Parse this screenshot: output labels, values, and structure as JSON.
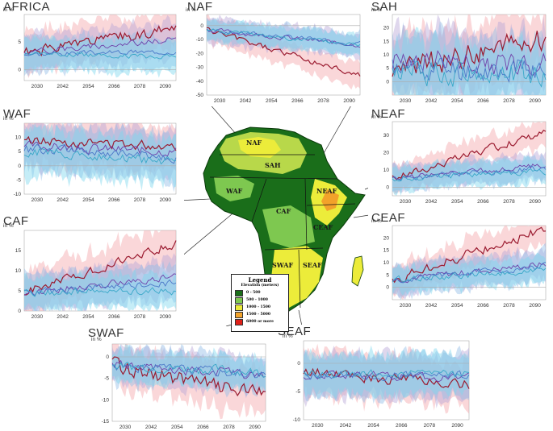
{
  "colors": {
    "red": "#9b1b30",
    "red_band": "#f4a6ab",
    "blue": "#4a78c8",
    "blue_band": "#93bde6",
    "cyan": "#3aa8c8",
    "cyan_band": "#7fd7ee",
    "purple": "#6f3fa8",
    "purple_band": "#b7a6d8",
    "zero": "#aaaaaa"
  },
  "map": {
    "region_labels": [
      "NAF",
      "SAH",
      "WAF",
      "CAF",
      "NEAF",
      "CEAF",
      "SWAF",
      "SEAF"
    ],
    "legend": {
      "title": "Legend",
      "subtitle": "Elevation (meters)",
      "entries": [
        {
          "label": "0 - 500",
          "color": "#1a6e1a"
        },
        {
          "label": "500 - 1000",
          "color": "#7ec850"
        },
        {
          "label": "1000 - 1500",
          "color": "#ecec3a"
        },
        {
          "label": "1500 - 5000",
          "color": "#f2a22a"
        },
        {
          "label": "6000 or more",
          "color": "#e02018"
        }
      ]
    }
  },
  "chart_data": [
    {
      "id": "africa",
      "type": "line",
      "title": "AFRICA",
      "ylabel": "in %",
      "ylim": [
        -2,
        10
      ],
      "yticks": [
        0,
        5
      ],
      "x": [
        2024,
        2095
      ],
      "xticks": [
        2030,
        2042,
        2054,
        2066,
        2078,
        2090
      ],
      "series": [
        {
          "name": "red",
          "start": 3,
          "end": 7.5,
          "noise": 0.9,
          "band": 3.5,
          "seed": 1
        },
        {
          "name": "purple",
          "start": 3.2,
          "end": 5.5,
          "noise": 0.5,
          "band": 3.2,
          "seed": 2
        },
        {
          "name": "blue",
          "start": 2.8,
          "end": 3.3,
          "noise": 0.4,
          "band": 3.0,
          "seed": 3
        },
        {
          "name": "cyan",
          "start": 3,
          "end": 2.3,
          "noise": 0.4,
          "band": 2.8,
          "seed": 4
        }
      ]
    },
    {
      "id": "naf",
      "type": "line",
      "title": "NAF",
      "ylabel": "in %",
      "ylim": [
        -50,
        8
      ],
      "yticks": [
        -50,
        -40,
        -30,
        -20,
        -10,
        0
      ],
      "x": [
        2024,
        2095
      ],
      "xticks": [
        2030,
        2042,
        2054,
        2066,
        2078,
        2090
      ],
      "series": [
        {
          "name": "red",
          "start": -3,
          "end": -36,
          "noise": 2,
          "band": 9,
          "seed": 5
        },
        {
          "name": "purple",
          "start": -3,
          "end": -14,
          "noise": 1.5,
          "band": 9,
          "seed": 6
        },
        {
          "name": "blue",
          "start": -3,
          "end": -13,
          "noise": 1.5,
          "band": 8,
          "seed": 7
        },
        {
          "name": "cyan",
          "start": -3,
          "end": -14,
          "noise": 1.5,
          "band": 7,
          "seed": 8
        }
      ]
    },
    {
      "id": "sah",
      "type": "line",
      "title": "SAH",
      "ylabel": "in %",
      "ylim": [
        -5,
        25
      ],
      "yticks": [
        0,
        5,
        10,
        15,
        20
      ],
      "x": [
        2024,
        2095
      ],
      "xticks": [
        2030,
        2042,
        2054,
        2066,
        2078,
        2090
      ],
      "series": [
        {
          "name": "red",
          "start": 4,
          "end": 16,
          "noise": 4,
          "band": 12,
          "seed": 9
        },
        {
          "name": "purple",
          "start": 8,
          "end": 6,
          "noise": 4,
          "band": 12,
          "seed": 10
        },
        {
          "name": "blue",
          "start": 5,
          "end": 4,
          "noise": 4,
          "band": 12,
          "seed": 11
        },
        {
          "name": "cyan",
          "start": 3,
          "end": 3,
          "noise": 4,
          "band": 11,
          "seed": 12
        }
      ]
    },
    {
      "id": "waf",
      "type": "line",
      "title": "WAF",
      "ylabel": "in %",
      "ylim": [
        -10,
        15
      ],
      "yticks": [
        -10,
        -5,
        0,
        5,
        10
      ],
      "x": [
        2024,
        2095
      ],
      "xticks": [
        2030,
        2042,
        2054,
        2066,
        2078,
        2090
      ],
      "series": [
        {
          "name": "red",
          "start": 9,
          "end": 7,
          "noise": 1.5,
          "band": 8,
          "seed": 13
        },
        {
          "name": "purple",
          "start": 7,
          "end": 5,
          "noise": 1.5,
          "band": 8,
          "seed": 14
        },
        {
          "name": "blue",
          "start": 6,
          "end": 3,
          "noise": 1.5,
          "band": 8,
          "seed": 15
        },
        {
          "name": "cyan",
          "start": 5,
          "end": 1.5,
          "noise": 1.5,
          "band": 8,
          "seed": 16
        }
      ]
    },
    {
      "id": "neaf",
      "type": "line",
      "title": "NEAF",
      "ylabel": "in %",
      "ylim": [
        -5,
        38
      ],
      "yticks": [
        0,
        10,
        20,
        30
      ],
      "x": [
        2024,
        2095
      ],
      "xticks": [
        2030,
        2042,
        2054,
        2066,
        2078,
        2090
      ],
      "series": [
        {
          "name": "red",
          "start": 5,
          "end": 32,
          "noise": 2,
          "band": 8,
          "seed": 17
        },
        {
          "name": "purple",
          "start": 5,
          "end": 13,
          "noise": 1.5,
          "band": 7,
          "seed": 18
        },
        {
          "name": "blue",
          "start": 5,
          "end": 11,
          "noise": 1.5,
          "band": 7,
          "seed": 19
        },
        {
          "name": "cyan",
          "start": 5,
          "end": 9,
          "noise": 1.5,
          "band": 7,
          "seed": 20
        }
      ]
    },
    {
      "id": "caf",
      "type": "line",
      "title": "CAF",
      "ylabel": "in %",
      "ylim": [
        0,
        20
      ],
      "yticks": [
        0,
        5,
        10,
        15
      ],
      "x": [
        2024,
        2095
      ],
      "xticks": [
        2030,
        2042,
        2054,
        2066,
        2078,
        2090
      ],
      "series": [
        {
          "name": "red",
          "start": 4.5,
          "end": 17,
          "noise": 1,
          "band": 5,
          "seed": 21
        },
        {
          "name": "purple",
          "start": 4.5,
          "end": 8.5,
          "noise": 0.8,
          "band": 4.5,
          "seed": 22
        },
        {
          "name": "blue",
          "start": 4.5,
          "end": 7,
          "noise": 0.8,
          "band": 4.5,
          "seed": 23
        },
        {
          "name": "cyan",
          "start": 4.5,
          "end": 5,
          "noise": 0.8,
          "band": 4,
          "seed": 24
        }
      ]
    },
    {
      "id": "ceaf",
      "type": "line",
      "title": "CEAF",
      "ylabel": "in %",
      "ylim": [
        -5,
        25
      ],
      "yticks": [
        0,
        5,
        10,
        15,
        20
      ],
      "x": [
        2024,
        2095
      ],
      "xticks": [
        2030,
        2042,
        2054,
        2066,
        2078,
        2090
      ],
      "series": [
        {
          "name": "red",
          "start": 3,
          "end": 24,
          "noise": 1.8,
          "band": 6,
          "seed": 25
        },
        {
          "name": "purple",
          "start": 3,
          "end": 9.5,
          "noise": 1.2,
          "band": 6,
          "seed": 26
        },
        {
          "name": "blue",
          "start": 3,
          "end": 8.5,
          "noise": 1.2,
          "band": 6,
          "seed": 27
        },
        {
          "name": "cyan",
          "start": 3,
          "end": 7,
          "noise": 1.2,
          "band": 5,
          "seed": 28
        }
      ]
    },
    {
      "id": "swaf",
      "type": "line",
      "title": "SWAF",
      "ylabel": "in %",
      "ylim": [
        -15,
        3
      ],
      "yticks": [
        -15,
        -10,
        -5,
        0
      ],
      "x": [
        2024,
        2095
      ],
      "xticks": [
        2030,
        2042,
        2054,
        2066,
        2078,
        2090
      ],
      "series": [
        {
          "name": "red",
          "start": -2,
          "end": -9,
          "noise": 1.6,
          "band": 5,
          "seed": 29
        },
        {
          "name": "purple",
          "start": -2,
          "end": -4.5,
          "noise": 1,
          "band": 4,
          "seed": 30
        },
        {
          "name": "blue",
          "start": -2,
          "end": -4,
          "noise": 1,
          "band": 4,
          "seed": 31
        },
        {
          "name": "cyan",
          "start": -2,
          "end": -3.5,
          "noise": 1,
          "band": 3.5,
          "seed": 32
        }
      ]
    },
    {
      "id": "seaf",
      "type": "line",
      "title": "SEAF",
      "ylabel": "in %",
      "ylim": [
        -10,
        4
      ],
      "yticks": [
        -10,
        -5,
        0
      ],
      "x": [
        2024,
        2095
      ],
      "xticks": [
        2030,
        2042,
        2054,
        2066,
        2078,
        2090
      ],
      "series": [
        {
          "name": "red",
          "start": -1.5,
          "end": -3.8,
          "noise": 0.9,
          "band": 4,
          "seed": 33
        },
        {
          "name": "purple",
          "start": -2,
          "end": -2.5,
          "noise": 0.7,
          "band": 3.8,
          "seed": 34
        },
        {
          "name": "blue",
          "start": -2,
          "end": -2.2,
          "noise": 0.7,
          "band": 3.6,
          "seed": 35
        },
        {
          "name": "cyan",
          "start": -2,
          "end": -2,
          "noise": 0.7,
          "band": 3.4,
          "seed": 36
        }
      ]
    }
  ]
}
